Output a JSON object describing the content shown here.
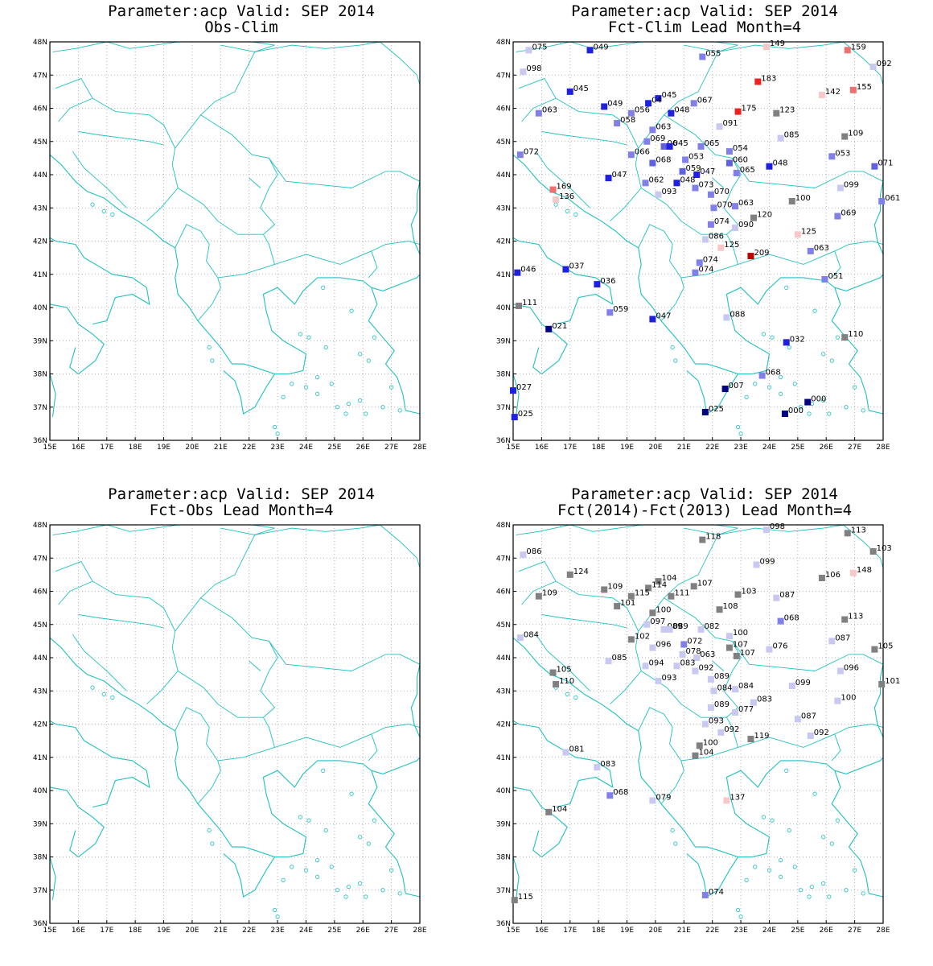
{
  "extent": {
    "lon": [
      15,
      28
    ],
    "lat": [
      36,
      48
    ]
  },
  "lon_ticks": [
    "15E",
    "16E",
    "17E",
    "18E",
    "19E",
    "20E",
    "21E",
    "22E",
    "23E",
    "24E",
    "25E",
    "26E",
    "27E",
    "28E"
  ],
  "lat_ticks": [
    "36N",
    "37N",
    "38N",
    "39N",
    "40N",
    "41N",
    "42N",
    "43N",
    "44N",
    "45N",
    "46N",
    "47N",
    "48N"
  ],
  "colors": {
    "coast": "#20c0c0",
    "grid": "#a0a0a0",
    "frame": "#000000"
  },
  "panels": [
    {
      "title1": "Parameter:acp Valid: SEP 2014",
      "title2": "Obs-Clim",
      "stations": []
    },
    {
      "title1": "Parameter:acp Valid: SEP 2014",
      "title2": "Fct-Clim Lead Month=4",
      "stations": [
        [
          "075",
          15.55,
          47.75,
          "#c8c8f0"
        ],
        [
          "049",
          17.7,
          47.75,
          "#2020e0"
        ],
        [
          "055",
          21.65,
          47.55,
          "#8080e8"
        ],
        [
          "149",
          23.9,
          47.85,
          "#f8c8c8"
        ],
        [
          "159",
          26.75,
          47.75,
          "#f07070"
        ],
        [
          "092",
          27.65,
          47.25,
          "#c8c8f0"
        ],
        [
          "098",
          15.35,
          47.1,
          "#c8c8f0"
        ],
        [
          "183",
          23.6,
          46.8,
          "#f02020"
        ],
        [
          "142",
          25.85,
          46.4,
          "#f8c8c8"
        ],
        [
          "155",
          26.95,
          46.55,
          "#f07070"
        ],
        [
          "045",
          17.0,
          46.5,
          "#2020e0"
        ],
        [
          "045",
          20.1,
          46.3,
          "#2020e0"
        ],
        [
          "049",
          18.2,
          46.05,
          "#2020e0"
        ],
        [
          "067",
          21.35,
          46.15,
          "#8080e8"
        ],
        [
          "04",
          19.75,
          46.15,
          "#2020e0"
        ],
        [
          "063",
          15.9,
          45.85,
          "#8080e8"
        ],
        [
          "056",
          19.15,
          45.85,
          "#8080e8"
        ],
        [
          "048",
          20.55,
          45.85,
          "#2020e0"
        ],
        [
          "175",
          22.9,
          45.9,
          "#f02020"
        ],
        [
          "123",
          24.25,
          45.85,
          "#808080"
        ],
        [
          "058",
          18.65,
          45.55,
          "#8080e8"
        ],
        [
          "063",
          19.9,
          45.35,
          "#8080e8"
        ],
        [
          "091",
          22.25,
          45.45,
          "#c8c8f0"
        ],
        [
          "085",
          24.4,
          45.1,
          "#c8c8f0"
        ],
        [
          "109",
          26.65,
          45.15,
          "#808080"
        ],
        [
          "069",
          19.7,
          45.0,
          "#8080e8"
        ],
        [
          "06",
          20.3,
          44.85,
          "#6060e0"
        ],
        [
          "045",
          20.5,
          44.85,
          "#2020e0"
        ],
        [
          "065",
          21.6,
          44.85,
          "#8080e8"
        ],
        [
          "054",
          22.6,
          44.7,
          "#8080e8"
        ],
        [
          "072",
          15.25,
          44.6,
          "#8080e8"
        ],
        [
          "066",
          19.15,
          44.6,
          "#8080e8"
        ],
        [
          "053",
          21.05,
          44.45,
          "#8080e8"
        ],
        [
          "053",
          26.2,
          44.55,
          "#8080e8"
        ],
        [
          "068",
          19.9,
          44.35,
          "#6060e0"
        ],
        [
          "060",
          22.6,
          44.35,
          "#6060e0"
        ],
        [
          "048",
          24.0,
          44.25,
          "#2020e0"
        ],
        [
          "071",
          27.7,
          44.25,
          "#6060e0"
        ],
        [
          "059",
          20.95,
          44.1,
          "#6060e0"
        ],
        [
          "047",
          21.45,
          44.0,
          "#2020e0"
        ],
        [
          "065",
          22.85,
          44.05,
          "#8080e8"
        ],
        [
          "047",
          18.35,
          43.9,
          "#2020e0"
        ],
        [
          "048",
          20.75,
          43.75,
          "#2020e0"
        ],
        [
          "062",
          19.65,
          43.75,
          "#8080e8"
        ],
        [
          "073",
          21.4,
          43.6,
          "#8080e8"
        ],
        [
          "169",
          16.4,
          43.55,
          "#f07070"
        ],
        [
          "099",
          26.5,
          43.6,
          "#c8c8f0"
        ],
        [
          "136",
          16.5,
          43.25,
          "#f8c8c8"
        ],
        [
          "093",
          20.1,
          43.4,
          "#c8c8f0"
        ],
        [
          "070",
          21.95,
          43.4,
          "#8080e8"
        ],
        [
          "100",
          24.8,
          43.2,
          "#808080"
        ],
        [
          "061",
          27.95,
          43.2,
          "#8080e8"
        ],
        [
          "070",
          22.05,
          43.0,
          "#8080e8"
        ],
        [
          "063",
          22.8,
          43.05,
          "#8080e8"
        ],
        [
          "120",
          23.45,
          42.7,
          "#808080"
        ],
        [
          "069",
          26.4,
          42.75,
          "#8080e8"
        ],
        [
          "074",
          21.95,
          42.5,
          "#8080e8"
        ],
        [
          "090",
          22.8,
          42.4,
          "#c8c8f0"
        ],
        [
          "125",
          25.0,
          42.2,
          "#f8c8c8"
        ],
        [
          "086",
          21.75,
          42.05,
          "#c8c8f0"
        ],
        [
          "125",
          22.3,
          41.8,
          "#f8c8c8"
        ],
        [
          "063",
          25.45,
          41.7,
          "#8080e8"
        ],
        [
          "209",
          23.35,
          41.55,
          "#c00000"
        ],
        [
          "074",
          21.55,
          41.35,
          "#8080e8"
        ],
        [
          "074",
          21.4,
          41.05,
          "#8080e8"
        ],
        [
          "046",
          15.15,
          41.05,
          "#2020e0"
        ],
        [
          "037",
          16.85,
          41.15,
          "#2020e0"
        ],
        [
          "051",
          25.95,
          40.85,
          "#8080e8"
        ],
        [
          "036",
          17.95,
          40.7,
          "#2020e0"
        ],
        [
          "111",
          15.2,
          40.05,
          "#808080"
        ],
        [
          "059",
          18.4,
          39.85,
          "#8080e8"
        ],
        [
          "047",
          19.9,
          39.65,
          "#2020e0"
        ],
        [
          "088",
          22.5,
          39.7,
          "#c8c8f0"
        ],
        [
          "021",
          16.25,
          39.35,
          "#000080"
        ],
        [
          "110",
          26.65,
          39.1,
          "#808080"
        ],
        [
          "032",
          24.6,
          38.95,
          "#2020e0"
        ],
        [
          "068",
          23.75,
          37.95,
          "#8080e8"
        ],
        [
          "027",
          15.0,
          37.5,
          "#2020e0"
        ],
        [
          "007",
          22.45,
          37.55,
          "#000080"
        ],
        [
          "000",
          25.35,
          37.15,
          "#000080"
        ],
        [
          "025",
          15.05,
          36.7,
          "#2020e0"
        ],
        [
          "025",
          21.75,
          36.85,
          "#000080"
        ],
        [
          "000",
          24.55,
          36.8,
          "#000080"
        ]
      ]
    },
    {
      "title1": "Parameter:acp Valid: SEP 2014",
      "title2": "Fct-Obs Lead Month=4",
      "stations": []
    },
    {
      "title1": "Parameter:acp Valid: SEP 2014",
      "title2": "Fct(2014)-Fct(2013) Lead Month=4",
      "stations": [
        [
          "118",
          21.65,
          47.55,
          "#808080"
        ],
        [
          "098",
          23.9,
          47.85,
          "#c8c8f0"
        ],
        [
          "113",
          26.75,
          47.75,
          "#808080"
        ],
        [
          "103",
          27.65,
          47.2,
          "#808080"
        ],
        [
          "086",
          15.35,
          47.1,
          "#c8c8f0"
        ],
        [
          "099",
          23.55,
          46.8,
          "#c8c8f0"
        ],
        [
          "106",
          25.85,
          46.4,
          "#808080"
        ],
        [
          "148",
          26.95,
          46.55,
          "#f8c8c8"
        ],
        [
          "124",
          17.0,
          46.5,
          "#808080"
        ],
        [
          "104",
          20.1,
          46.3,
          "#808080"
        ],
        [
          "107",
          21.35,
          46.15,
          "#808080"
        ],
        [
          "109",
          18.2,
          46.05,
          "#808080"
        ],
        [
          "114",
          19.75,
          46.1,
          "#808080"
        ],
        [
          "109",
          15.9,
          45.85,
          "#808080"
        ],
        [
          "115",
          19.15,
          45.85,
          "#808080"
        ],
        [
          "111",
          20.55,
          45.85,
          "#808080"
        ],
        [
          "103",
          22.9,
          45.9,
          "#808080"
        ],
        [
          "087",
          24.25,
          45.8,
          "#c8c8f0"
        ],
        [
          "101",
          18.65,
          45.55,
          "#808080"
        ],
        [
          "108",
          22.25,
          45.45,
          "#808080"
        ],
        [
          "100",
          19.9,
          45.35,
          "#808080"
        ],
        [
          "068",
          24.4,
          45.1,
          "#8080e8"
        ],
        [
          "113",
          26.65,
          45.15,
          "#808080"
        ],
        [
          "097",
          19.7,
          45.0,
          "#c8c8f0"
        ],
        [
          "089",
          20.3,
          44.85,
          "#c8c8f0"
        ],
        [
          "089",
          20.5,
          44.85,
          "#c8c8f0"
        ],
        [
          "082",
          21.6,
          44.85,
          "#c8c8f0"
        ],
        [
          "100",
          22.6,
          44.65,
          "#c8c8f0"
        ],
        [
          "084",
          15.25,
          44.6,
          "#c8c8f0"
        ],
        [
          "102",
          19.15,
          44.55,
          "#808080"
        ],
        [
          "087",
          26.2,
          44.5,
          "#c8c8f0"
        ],
        [
          "096",
          19.9,
          44.3,
          "#c8c8f0"
        ],
        [
          "072",
          21.0,
          44.4,
          "#8080e8"
        ],
        [
          "107",
          22.6,
          44.3,
          "#808080"
        ],
        [
          "076",
          24.0,
          44.25,
          "#c8c8f0"
        ],
        [
          "105",
          27.7,
          44.25,
          "#808080"
        ],
        [
          "078",
          20.95,
          44.1,
          "#c8c8f0"
        ],
        [
          "063",
          21.45,
          44.0,
          "#c8c8f0"
        ],
        [
          "107",
          22.85,
          44.05,
          "#808080"
        ],
        [
          "085",
          18.35,
          43.9,
          "#c8c8f0"
        ],
        [
          "094",
          19.65,
          43.75,
          "#c8c8f0"
        ],
        [
          "083",
          20.75,
          43.75,
          "#c8c8f0"
        ],
        [
          "092",
          21.4,
          43.6,
          "#c8c8f0"
        ],
        [
          "105",
          16.4,
          43.55,
          "#808080"
        ],
        [
          "096",
          26.5,
          43.6,
          "#c8c8f0"
        ],
        [
          "110",
          16.5,
          43.2,
          "#808080"
        ],
        [
          "093",
          20.1,
          43.3,
          "#c8c8f0"
        ],
        [
          "089",
          21.95,
          43.35,
          "#c8c8f0"
        ],
        [
          "099",
          24.8,
          43.15,
          "#c8c8f0"
        ],
        [
          "101",
          27.95,
          43.2,
          "#808080"
        ],
        [
          "084",
          22.05,
          43.0,
          "#c8c8f0"
        ],
        [
          "084",
          22.8,
          43.05,
          "#c8c8f0"
        ],
        [
          "083",
          23.45,
          42.65,
          "#c8c8f0"
        ],
        [
          "100",
          26.4,
          42.7,
          "#c8c8f0"
        ],
        [
          "089",
          21.95,
          42.5,
          "#c8c8f0"
        ],
        [
          "077",
          22.8,
          42.35,
          "#c8c8f0"
        ],
        [
          "087",
          25.0,
          42.15,
          "#c8c8f0"
        ],
        [
          "093",
          21.75,
          42.0,
          "#c8c8f0"
        ],
        [
          "092",
          22.3,
          41.75,
          "#c8c8f0"
        ],
        [
          "092",
          25.45,
          41.65,
          "#c8c8f0"
        ],
        [
          "119",
          23.35,
          41.55,
          "#808080"
        ],
        [
          "100",
          21.55,
          41.35,
          "#808080"
        ],
        [
          "104",
          21.4,
          41.05,
          "#808080"
        ],
        [
          "081",
          16.85,
          41.15,
          "#c8c8f0"
        ],
        [
          "083",
          17.95,
          40.7,
          "#c8c8f0"
        ],
        [
          "068",
          18.4,
          39.85,
          "#8080e8"
        ],
        [
          "079",
          19.9,
          39.7,
          "#c8c8f0"
        ],
        [
          "137",
          22.5,
          39.7,
          "#f8c8c8"
        ],
        [
          "104",
          16.25,
          39.35,
          "#808080"
        ],
        [
          "074",
          21.75,
          36.85,
          "#8080e8"
        ],
        [
          "115",
          15.05,
          36.7,
          "#808080"
        ]
      ]
    }
  ]
}
